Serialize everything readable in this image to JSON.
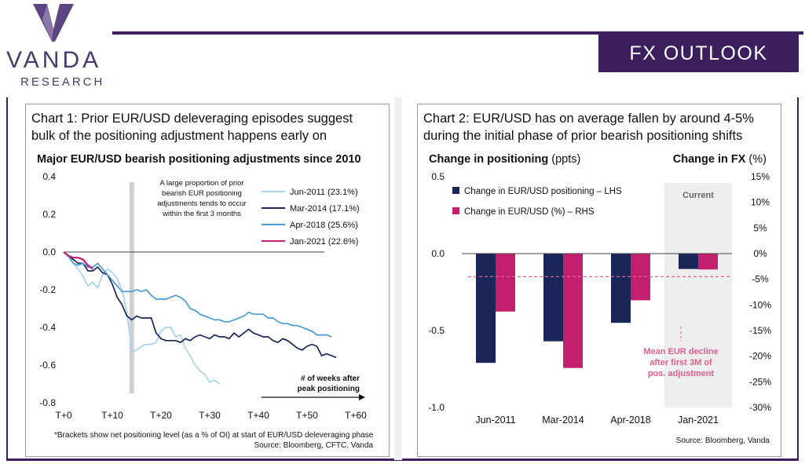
{
  "brand": {
    "name": "VANDA",
    "subtitle": "RESEARCH",
    "banner": "FX OUTLOOK"
  },
  "colors": {
    "brand_purple": "#3c1f5c",
    "light_blue": "#a9d2ec",
    "navy": "#1a2657",
    "mid_blue": "#4a9bd6",
    "magenta": "#c2206e",
    "pink_dashed": "#e0608f"
  },
  "panel1": {
    "title_line1": "Chart 1: Prior EUR/USD deleveraging episodes suggest",
    "title_line2": "bulk of the positioning adjustment happens early on",
    "chart_title": "Major EUR/USD bearish positioning adjustments since 2010",
    "annotation": [
      "A large proportion of prior",
      "bearish EUR positioning",
      "adjustments tends to occur",
      "within the first 3 months"
    ],
    "axis_note": [
      "# of weeks after",
      "peak positioning"
    ],
    "footnote": "*Brackets show net positioning level (as a % of OI) at start of EUR/USD deleveraging phase",
    "source": "Source: Bloomberg, CFTC, Vanda"
  },
  "panel2": {
    "title_line1": "Chart 2: EUR/USD has on average fallen by around 4-5%",
    "title_line2": "during the initial phase of prior bearish positioning shifts",
    "left_axis_title_bold": "Change in positioning",
    "left_axis_title_unit": " (ppts)",
    "right_axis_title_bold": "Change in FX",
    "right_axis_title_unit": " (%)",
    "current_label": "Current",
    "mean_label": [
      "Mean EUR decline",
      "after first 3M of",
      "pos. adjustment"
    ],
    "source": "Source: Bloomberg, Vanda"
  },
  "chart_data": [
    {
      "type": "line",
      "title": "Major EUR/USD bearish positioning adjustments since 2010",
      "xlim": [
        0,
        60
      ],
      "ylim": [
        -0.8,
        0.4
      ],
      "x_ticks": [
        0,
        10,
        20,
        30,
        40,
        50,
        60
      ],
      "x_tick_labels": [
        "T+0",
        "T+10",
        "T+20",
        "T+30",
        "T+40",
        "T+50",
        "T+60"
      ],
      "y_ticks": [
        -0.8,
        -0.6,
        -0.4,
        -0.2,
        0.0,
        0.2,
        0.4
      ],
      "y_tick_labels": [
        "-0.8",
        "-0.6",
        "-0.4",
        "-0.2",
        "0.0",
        "0.2",
        "0.4"
      ],
      "shaded_x": 14,
      "legend": "top-right",
      "series": [
        {
          "name": "Jun-2011 (23.1%)",
          "color": "#a9d2ec",
          "x": [
            0,
            1,
            2,
            3,
            4,
            5,
            6,
            7,
            8,
            9,
            10,
            11,
            12,
            13,
            14,
            15,
            16,
            17,
            18,
            19,
            20,
            21,
            22,
            23,
            24,
            25,
            26,
            27,
            28,
            29,
            30,
            31,
            32
          ],
          "y": [
            0,
            -0.03,
            -0.06,
            -0.09,
            -0.13,
            -0.18,
            -0.16,
            -0.19,
            -0.12,
            -0.09,
            -0.11,
            -0.14,
            -0.2,
            -0.32,
            -0.53,
            -0.52,
            -0.5,
            -0.49,
            -0.49,
            -0.48,
            -0.42,
            -0.4,
            -0.4,
            -0.45,
            -0.44,
            -0.51,
            -0.55,
            -0.6,
            -0.63,
            -0.65,
            -0.69,
            -0.68,
            -0.7
          ]
        },
        {
          "name": "Mar-2014 (17.1%)",
          "color": "#1a2657",
          "x": [
            0,
            1,
            2,
            3,
            4,
            5,
            6,
            7,
            8,
            9,
            10,
            11,
            12,
            13,
            14,
            15,
            16,
            17,
            18,
            19,
            20,
            21,
            22,
            23,
            24,
            25,
            26,
            27,
            28,
            29,
            30,
            31,
            32,
            33,
            34,
            35,
            36,
            37,
            38,
            39,
            40,
            41,
            42,
            43,
            44,
            45,
            46,
            47,
            48,
            49,
            50,
            51,
            52,
            53,
            54,
            55,
            56
          ],
          "y": [
            0,
            -0.02,
            -0.04,
            -0.06,
            -0.06,
            -0.1,
            -0.1,
            -0.08,
            -0.11,
            -0.12,
            -0.17,
            -0.24,
            -0.28,
            -0.34,
            -0.36,
            -0.34,
            -0.35,
            -0.35,
            -0.35,
            -0.43,
            -0.46,
            -0.47,
            -0.47,
            -0.47,
            -0.48,
            -0.46,
            -0.47,
            -0.45,
            -0.44,
            -0.45,
            -0.46,
            -0.44,
            -0.45,
            -0.45,
            -0.46,
            -0.43,
            -0.45,
            -0.43,
            -0.41,
            -0.43,
            -0.44,
            -0.45,
            -0.45,
            -0.47,
            -0.48,
            -0.46,
            -0.47,
            -0.49,
            -0.51,
            -0.52,
            -0.5,
            -0.49,
            -0.5,
            -0.55,
            -0.54,
            -0.55,
            -0.56
          ]
        },
        {
          "name": "Apr-2018 (25.6%)",
          "color": "#4a9bd6",
          "x": [
            0,
            1,
            2,
            3,
            4,
            5,
            6,
            7,
            8,
            9,
            10,
            11,
            12,
            13,
            14,
            15,
            16,
            17,
            18,
            19,
            20,
            21,
            22,
            23,
            24,
            25,
            26,
            27,
            28,
            29,
            30,
            31,
            32,
            33,
            34,
            35,
            36,
            37,
            38,
            39,
            40,
            41,
            42,
            43,
            44,
            45,
            46,
            47,
            48,
            49,
            50,
            51,
            52,
            53,
            54,
            55
          ],
          "y": [
            0,
            -0.02,
            -0.06,
            -0.07,
            -0.06,
            -0.08,
            -0.08,
            -0.06,
            -0.09,
            -0.12,
            -0.15,
            -0.18,
            -0.21,
            -0.21,
            -0.21,
            -0.2,
            -0.21,
            -0.2,
            -0.23,
            -0.25,
            -0.25,
            -0.25,
            -0.24,
            -0.23,
            -0.24,
            -0.26,
            -0.3,
            -0.31,
            -0.33,
            -0.34,
            -0.35,
            -0.36,
            -0.36,
            -0.37,
            -0.37,
            -0.36,
            -0.35,
            -0.34,
            -0.32,
            -0.33,
            -0.33,
            -0.33,
            -0.35,
            -0.35,
            -0.37,
            -0.38,
            -0.38,
            -0.39,
            -0.39,
            -0.4,
            -0.41,
            -0.42,
            -0.44,
            -0.44,
            -0.44,
            -0.45
          ]
        },
        {
          "name": "Jan-2021 (22.6%)",
          "color": "#c2206e",
          "x": [
            0,
            1,
            2,
            3,
            4,
            5,
            6
          ],
          "y": [
            0,
            -0.02,
            -0.03,
            -0.03,
            -0.04,
            -0.07,
            -0.09
          ]
        }
      ]
    },
    {
      "type": "bar",
      "categories": [
        "Jun-2011",
        "Mar-2014",
        "Apr-2018",
        "Jan-2021"
      ],
      "series": [
        {
          "name": "Change in EUR/USD positioning – LHS",
          "axis": "left",
          "color": "#1a2657",
          "values": [
            -0.71,
            -0.57,
            -0.45,
            -0.1
          ]
        },
        {
          "name": "Change in EUR/USD (%) – RHS",
          "axis": "right",
          "color": "#c2206e",
          "values": [
            -11.3,
            -22.3,
            -9.1,
            -3.1
          ]
        }
      ],
      "ylim_left": [
        -1.0,
        0.5
      ],
      "ylim_right": [
        -30,
        15
      ],
      "y_ticks_left": [
        "0.5",
        "0.0",
        "-0.5",
        "-1.0"
      ],
      "y_ticks_left_values": [
        0.5,
        0.0,
        -0.5,
        -1.0
      ],
      "y_ticks_right": [
        "15%",
        "10%",
        "5%",
        "0%",
        "-5%",
        "-10%",
        "-15%",
        "-20%",
        "-25%",
        "-30%"
      ],
      "y_ticks_right_values": [
        15,
        10,
        5,
        0,
        -5,
        -10,
        -15,
        -20,
        -25,
        -30
      ],
      "mean_line_right": -4.5,
      "highlighted_category": "Jan-2021",
      "legend": "top-left"
    }
  ]
}
